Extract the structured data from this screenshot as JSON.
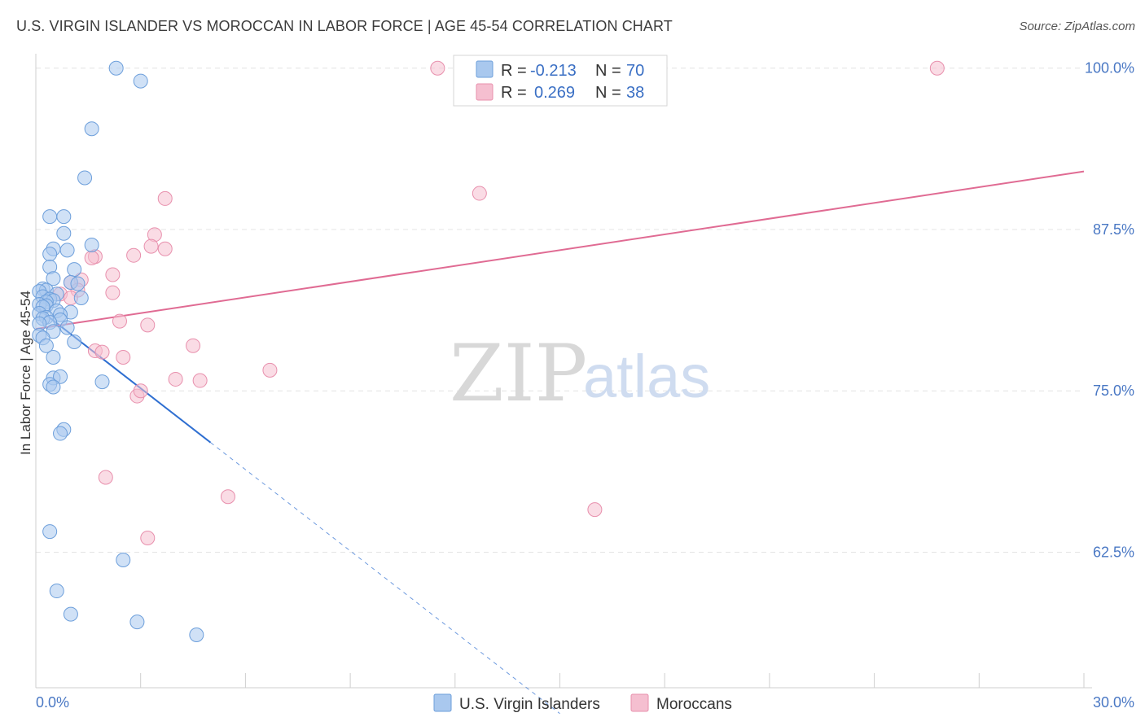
{
  "title": "U.S. VIRGIN ISLANDER VS MOROCCAN IN LABOR FORCE | AGE 45-54 CORRELATION CHART",
  "source": "Source: ZipAtlas.com",
  "watermark": {
    "zip": "ZIP",
    "atlas": "atlas"
  },
  "colors": {
    "blue_fill": "#a9c8ee",
    "blue_stroke": "#6d9fdb",
    "blue_line": "#2f6fd1",
    "pink_fill": "#f5bfd0",
    "pink_stroke": "#e890ad",
    "pink_line": "#e06b93",
    "grid": "#e4e4e4",
    "tick_text": "#4a78c4"
  },
  "legend_top": {
    "rows": [
      {
        "r_label": "R =",
        "r_value": "-0.213",
        "n_label": "N =",
        "n_value": "70"
      },
      {
        "r_label": "R =",
        "r_value": "0.269",
        "n_label": "N =",
        "n_value": "38"
      }
    ]
  },
  "chart_data": {
    "type": "scatter",
    "title": "U.S. VIRGIN ISLANDER VS MOROCCAN IN LABOR FORCE | AGE 45-54 CORRELATION CHART",
    "xlabel": "",
    "ylabel": "In Labor Force | Age 45-54",
    "xlim": [
      0,
      30
    ],
    "ylim": [
      52,
      102
    ],
    "x_tick_labels": [
      "0.0%",
      "30.0%"
    ],
    "y_ticks": [
      62.5,
      75.0,
      87.5,
      100.0
    ],
    "y_tick_labels": [
      "62.5%",
      "75.0%",
      "87.5%",
      "100.0%"
    ],
    "grid": true,
    "legend_placement": "bottom-center",
    "series": [
      {
        "name": "U.S. Virgin Islanders",
        "color": "#a9c8ee",
        "trend": {
          "x0": 0.0,
          "y0": 81.5,
          "x1": 5.0,
          "y1": 71.0,
          "dashed_to_x": 15.0
        },
        "points": [
          [
            2.3,
            100.0
          ],
          [
            3.0,
            99.0
          ],
          [
            1.6,
            95.3
          ],
          [
            1.4,
            91.5
          ],
          [
            0.4,
            88.5
          ],
          [
            0.8,
            88.5
          ],
          [
            0.8,
            87.2
          ],
          [
            1.6,
            86.3
          ],
          [
            0.5,
            86.0
          ],
          [
            0.9,
            85.9
          ],
          [
            0.4,
            85.6
          ],
          [
            0.4,
            84.6
          ],
          [
            1.1,
            84.4
          ],
          [
            0.5,
            83.7
          ],
          [
            1.0,
            83.4
          ],
          [
            1.2,
            83.3
          ],
          [
            0.2,
            82.9
          ],
          [
            0.3,
            82.8
          ],
          [
            0.1,
            82.7
          ],
          [
            0.6,
            82.5
          ],
          [
            0.2,
            82.3
          ],
          [
            1.3,
            82.2
          ],
          [
            0.4,
            82.1
          ],
          [
            0.5,
            82.0
          ],
          [
            0.3,
            81.9
          ],
          [
            0.1,
            81.7
          ],
          [
            0.3,
            81.6
          ],
          [
            0.2,
            81.5
          ],
          [
            0.6,
            81.2
          ],
          [
            1.0,
            81.1
          ],
          [
            0.1,
            81.0
          ],
          [
            0.7,
            80.9
          ],
          [
            0.3,
            80.7
          ],
          [
            0.2,
            80.6
          ],
          [
            0.7,
            80.5
          ],
          [
            0.4,
            80.3
          ],
          [
            0.1,
            80.2
          ],
          [
            0.9,
            79.9
          ],
          [
            0.5,
            79.6
          ],
          [
            0.1,
            79.3
          ],
          [
            0.2,
            79.1
          ],
          [
            1.1,
            78.8
          ],
          [
            0.3,
            78.5
          ],
          [
            0.5,
            77.6
          ],
          [
            0.5,
            76.0
          ],
          [
            0.7,
            76.1
          ],
          [
            0.4,
            75.5
          ],
          [
            0.5,
            75.3
          ],
          [
            1.9,
            75.7
          ],
          [
            0.8,
            72.0
          ],
          [
            0.7,
            71.7
          ],
          [
            0.4,
            64.1
          ],
          [
            2.5,
            61.9
          ],
          [
            0.6,
            59.5
          ],
          [
            1.0,
            57.7
          ],
          [
            2.9,
            57.1
          ],
          [
            4.6,
            56.1
          ]
        ]
      },
      {
        "name": "Moroccans",
        "color": "#f5bfd0",
        "trend": {
          "x0": 0.0,
          "y0": 79.8,
          "x1": 30.0,
          "y1": 92.0
        },
        "points": [
          [
            11.5,
            100.0
          ],
          [
            25.8,
            100.0
          ],
          [
            12.7,
            90.3
          ],
          [
            3.7,
            89.9
          ],
          [
            3.4,
            87.1
          ],
          [
            3.3,
            86.2
          ],
          [
            3.7,
            86.0
          ],
          [
            1.7,
            85.4
          ],
          [
            1.6,
            85.3
          ],
          [
            2.8,
            85.5
          ],
          [
            1.3,
            83.6
          ],
          [
            2.2,
            84.0
          ],
          [
            1.0,
            83.4
          ],
          [
            1.2,
            82.8
          ],
          [
            0.7,
            82.5
          ],
          [
            1.0,
            82.2
          ],
          [
            2.2,
            82.6
          ],
          [
            2.4,
            80.4
          ],
          [
            3.2,
            80.1
          ],
          [
            1.7,
            78.1
          ],
          [
            1.9,
            78.0
          ],
          [
            2.5,
            77.6
          ],
          [
            4.5,
            78.5
          ],
          [
            6.7,
            76.6
          ],
          [
            4.0,
            75.9
          ],
          [
            4.7,
            75.8
          ],
          [
            2.9,
            74.6
          ],
          [
            3.0,
            75.0
          ],
          [
            2.0,
            68.3
          ],
          [
            5.5,
            66.8
          ],
          [
            3.2,
            63.6
          ],
          [
            16.0,
            65.8
          ]
        ]
      }
    ]
  },
  "legend_bottom": [
    {
      "label": "U.S. Virgin Islanders"
    },
    {
      "label": "Moroccans"
    }
  ]
}
